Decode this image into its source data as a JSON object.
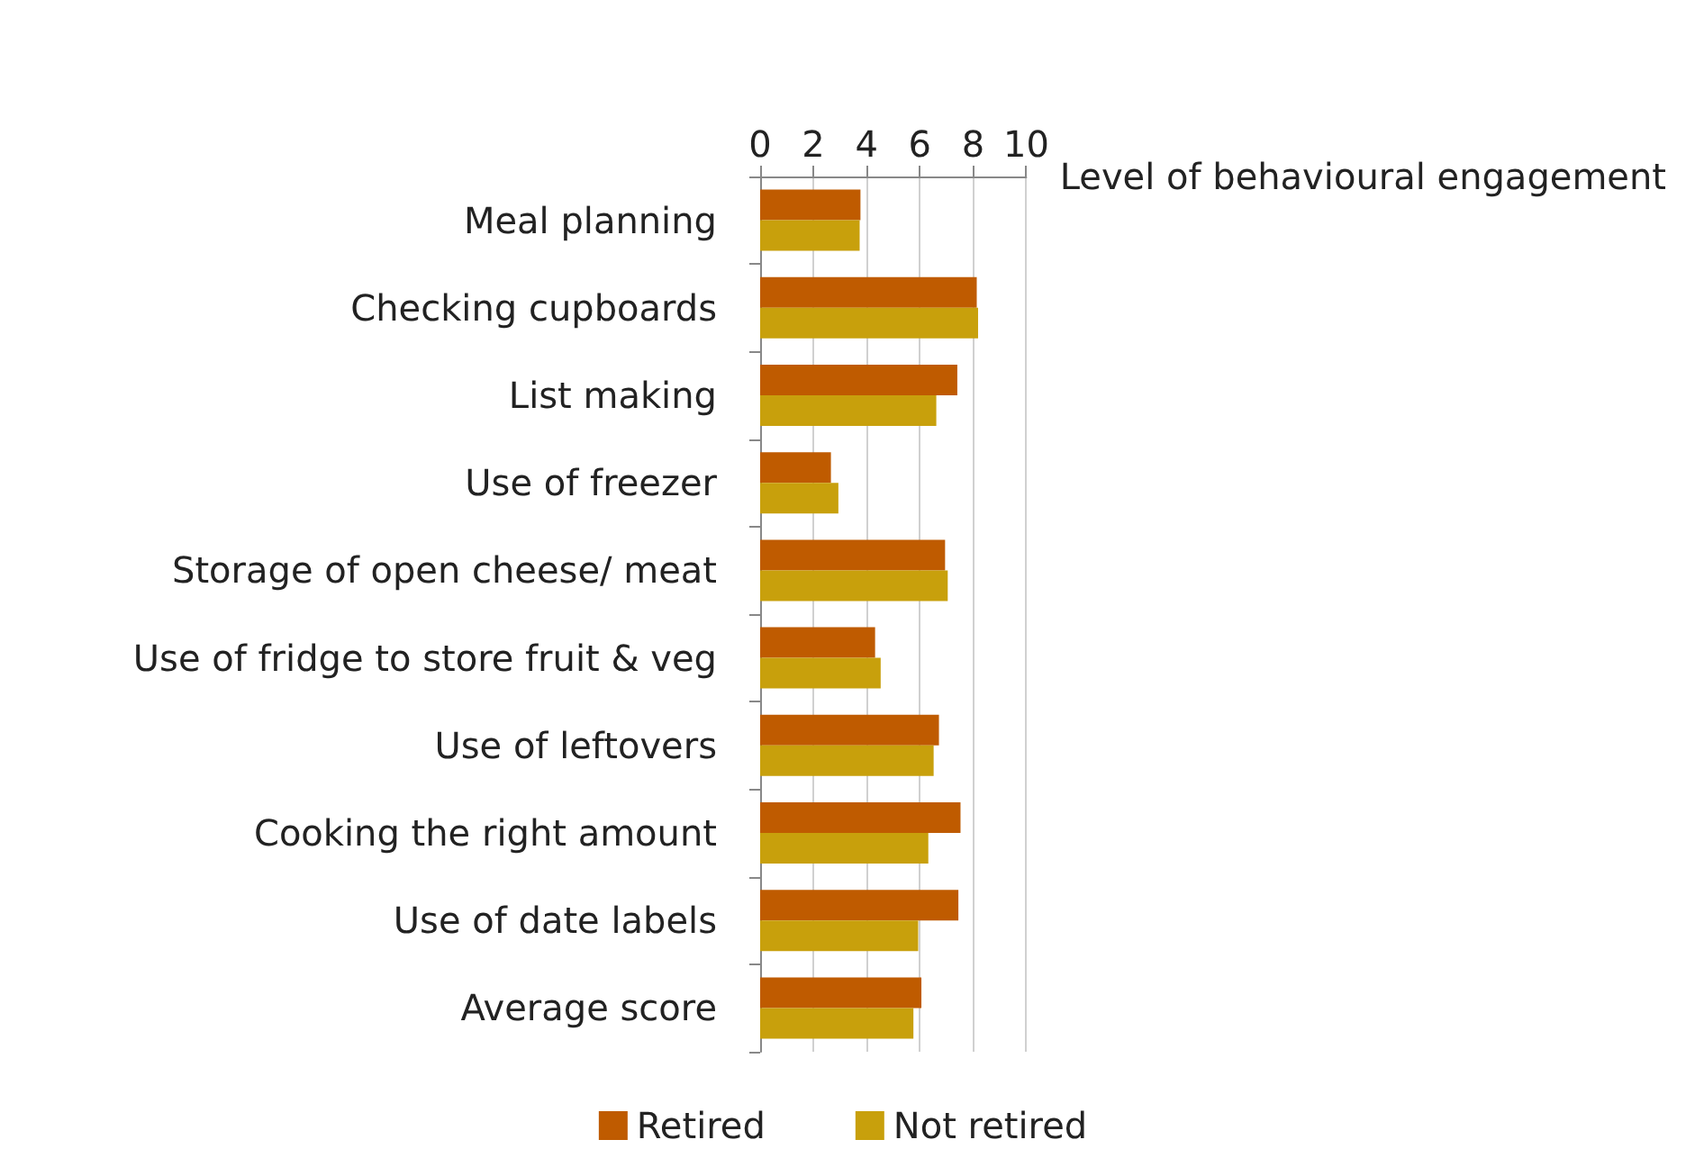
{
  "chart_data": {
    "type": "bar",
    "orientation": "horizontal",
    "xlabel": "Level of behavioural engagement",
    "categories": [
      "Meal planning",
      "Checking cupboards",
      "List making",
      "Use of freezer",
      "Storage of open cheese/ meat",
      "Use of fridge to store fruit & veg",
      "Use of leftovers",
      "Cooking the right amount",
      "Use of date labels",
      "Average score"
    ],
    "series": [
      {
        "name": "Retired",
        "color": "#bf5b00",
        "values": [
          3.77,
          8.14,
          7.41,
          2.66,
          6.95,
          4.32,
          6.72,
          7.53,
          7.45,
          6.06
        ]
      },
      {
        "name": "Not retired",
        "color": "#c8a00c",
        "values": [
          3.74,
          8.19,
          6.62,
          2.94,
          7.05,
          4.53,
          6.52,
          6.32,
          5.94,
          5.76
        ]
      }
    ],
    "xlim": [
      0,
      10
    ],
    "xticks": [
      0,
      2,
      4,
      6,
      8,
      10
    ],
    "grid": "x",
    "legend": "bottom"
  }
}
